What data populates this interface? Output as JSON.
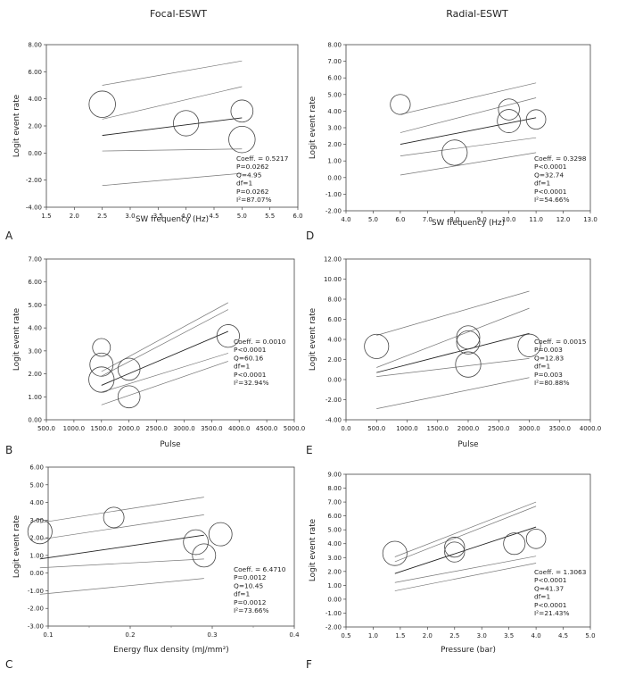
{
  "column_titles": [
    "Focal-ESWT",
    "Radial-ESWT"
  ],
  "chart_data": [
    {
      "type": "scatter",
      "panel_label": "A",
      "xlabel": "SW frequency (Hz)",
      "ylabel": "Logit event rate",
      "xlim": [
        1.5,
        6.0
      ],
      "xtick_step": 0.5,
      "xdecimals": 1,
      "ylim": [
        -4.0,
        8.0
      ],
      "ytick_step": 2.0,
      "ydecimals": 2,
      "points": [
        {
          "x": 2.5,
          "y": 3.6,
          "size": 1.3
        },
        {
          "x": 4.0,
          "y": 2.2,
          "size": 1.2
        },
        {
          "x": 5.0,
          "y": 3.1,
          "size": 0.9
        },
        {
          "x": 5.0,
          "y": 1.0,
          "size": 1.3
        }
      ],
      "lines": [
        {
          "x": [
            2.5,
            5.0
          ],
          "y": [
            1.3,
            2.6
          ]
        },
        {
          "x": [
            2.5,
            5.0
          ],
          "y": [
            5.0,
            6.8
          ]
        },
        {
          "x": [
            2.5,
            5.0
          ],
          "y": [
            2.5,
            4.9
          ]
        },
        {
          "x": [
            2.5,
            5.0
          ],
          "y": [
            0.15,
            0.3
          ]
        },
        {
          "x": [
            2.5,
            5.0
          ],
          "y": [
            -2.4,
            -1.5
          ]
        }
      ],
      "stats": [
        "Coeff. = 0.5217",
        "P=0.0262",
        "Q=4.95",
        "df=1",
        "P=0.0262",
        "I²=87.07%"
      ]
    },
    {
      "type": "scatter",
      "panel_label": "D",
      "xlabel": "SW frequency (Hz)",
      "ylabel": "Logit event rate",
      "xlim": [
        4.0,
        13.0
      ],
      "xtick_step": 1.0,
      "xdecimals": 1,
      "ylim": [
        -2.0,
        8.0
      ],
      "ytick_step": 1.0,
      "ydecimals": 2,
      "points": [
        {
          "x": 6.0,
          "y": 4.4,
          "size": 0.7
        },
        {
          "x": 8.0,
          "y": 1.5,
          "size": 1.2
        },
        {
          "x": 10.0,
          "y": 4.1,
          "size": 0.8
        },
        {
          "x": 10.0,
          "y": 3.4,
          "size": 1.0
        },
        {
          "x": 11.0,
          "y": 3.5,
          "size": 0.65
        }
      ],
      "lines": [
        {
          "x": [
            6.0,
            11.0
          ],
          "y": [
            2.0,
            3.6
          ]
        },
        {
          "x": [
            6.0,
            11.0
          ],
          "y": [
            3.8,
            5.7
          ]
        },
        {
          "x": [
            6.0,
            11.0
          ],
          "y": [
            2.7,
            4.8
          ]
        },
        {
          "x": [
            6.0,
            11.0
          ],
          "y": [
            1.3,
            2.4
          ]
        },
        {
          "x": [
            6.0,
            11.0
          ],
          "y": [
            0.15,
            1.5
          ]
        }
      ],
      "stats": [
        "Coeff. = 0.3298",
        "P<0.0001",
        "Q=32.74",
        "df=1",
        "P<0.0001",
        "I²=54.66%"
      ]
    },
    {
      "type": "scatter",
      "panel_label": "B",
      "xlabel": "Pulse",
      "ylabel": "Logit event rate",
      "xlim": [
        500,
        5000
      ],
      "xtick_step": 500,
      "xdecimals": 1,
      "ylim": [
        0,
        7
      ],
      "ytick_step": 1.0,
      "ydecimals": 2,
      "points": [
        {
          "x": 1500,
          "y": 3.15,
          "size": 0.5
        },
        {
          "x": 1500,
          "y": 2.4,
          "size": 1.0
        },
        {
          "x": 1500,
          "y": 1.75,
          "size": 1.2
        },
        {
          "x": 2000,
          "y": 2.2,
          "size": 0.9
        },
        {
          "x": 2000,
          "y": 1.0,
          "size": 0.9
        },
        {
          "x": 3800,
          "y": 3.65,
          "size": 0.95
        }
      ],
      "lines": [
        {
          "x": [
            1500,
            3800
          ],
          "y": [
            1.5,
            3.85
          ]
        },
        {
          "x": [
            1500,
            3800
          ],
          "y": [
            2.1,
            5.1
          ]
        },
        {
          "x": [
            1500,
            3800
          ],
          "y": [
            1.9,
            4.8
          ]
        },
        {
          "x": [
            1500,
            3800
          ],
          "y": [
            1.2,
            2.9
          ]
        },
        {
          "x": [
            1500,
            3800
          ],
          "y": [
            0.65,
            2.55
          ]
        }
      ],
      "stats": [
        "Coeff. = 0.0010",
        "P<0.0001",
        "Q=60.16",
        "df=1",
        "P<0.0001",
        "I²=32.94%"
      ]
    },
    {
      "type": "scatter",
      "panel_label": "E",
      "xlabel": "Pulse",
      "ylabel": "Logit event rate",
      "xlim": [
        0,
        4000
      ],
      "xtick_step": 500,
      "xdecimals": 1,
      "ylim": [
        -4,
        12
      ],
      "ytick_step": 2.0,
      "ydecimals": 2,
      "points": [
        {
          "x": 500,
          "y": 3.3,
          "size": 1.1
        },
        {
          "x": 2000,
          "y": 4.2,
          "size": 1.0
        },
        {
          "x": 2000,
          "y": 3.7,
          "size": 1.0
        },
        {
          "x": 2000,
          "y": 1.5,
          "size": 1.2
        },
        {
          "x": 3000,
          "y": 3.4,
          "size": 0.95
        }
      ],
      "lines": [
        {
          "x": [
            500,
            3000
          ],
          "y": [
            0.7,
            4.6
          ]
        },
        {
          "x": [
            500,
            3000
          ],
          "y": [
            4.4,
            8.8
          ]
        },
        {
          "x": [
            500,
            3000
          ],
          "y": [
            1.2,
            7.1
          ]
        },
        {
          "x": [
            500,
            3000
          ],
          "y": [
            0.3,
            2.1
          ]
        },
        {
          "x": [
            500,
            3000
          ],
          "y": [
            -2.9,
            0.2
          ]
        }
      ],
      "stats": [
        "Coeff. = 0.0015",
        "P=0.003",
        "Q=12.83",
        "df=1",
        "P=0.003",
        "I²=80.88%"
      ]
    },
    {
      "type": "scatter",
      "panel_label": "C",
      "xlabel": "Energy flux density (mJ/mm²)",
      "ylabel": "Logit event rate",
      "xlim": [
        0.1,
        0.4
      ],
      "xtick_step": 0.1,
      "xdecimals": 1,
      "xminor_step": 0.05,
      "ylim": [
        -3,
        6
      ],
      "ytick_step": 1.0,
      "ydecimals": 2,
      "points": [
        {
          "x": 0.09,
          "y": 2.35,
          "size": 1.1
        },
        {
          "x": 0.18,
          "y": 3.15,
          "size": 0.75
        },
        {
          "x": 0.31,
          "y": 2.2,
          "size": 1.0
        },
        {
          "x": 0.28,
          "y": 1.75,
          "size": 1.15
        },
        {
          "x": 0.29,
          "y": 1.0,
          "size": 1.0
        }
      ],
      "lines": [
        {
          "x": [
            0.09,
            0.29
          ],
          "y": [
            0.8,
            2.15
          ]
        },
        {
          "x": [
            0.09,
            0.29
          ],
          "y": [
            2.85,
            4.3
          ]
        },
        {
          "x": [
            0.09,
            0.29
          ],
          "y": [
            1.9,
            3.3
          ]
        },
        {
          "x": [
            0.09,
            0.29
          ],
          "y": [
            0.3,
            0.8
          ]
        },
        {
          "x": [
            0.09,
            0.29
          ],
          "y": [
            -1.2,
            -0.3
          ]
        }
      ],
      "stats": [
        "Coeff. = 6.4710",
        "P=0.0012",
        "Q=10.45",
        "df=1",
        "P=0.0012",
        "I²=73.66%"
      ]
    },
    {
      "type": "scatter",
      "panel_label": "F",
      "xlabel": "Pressure (bar)",
      "ylabel": "Logit event rate",
      "xlim": [
        0.5,
        5.0
      ],
      "xtick_step": 0.5,
      "xdecimals": 1,
      "ylim": [
        -2,
        9
      ],
      "ytick_step": 1.0,
      "ydecimals": 2,
      "points": [
        {
          "x": 1.4,
          "y": 3.3,
          "size": 1.1
        },
        {
          "x": 2.5,
          "y": 3.75,
          "size": 0.7
        },
        {
          "x": 2.5,
          "y": 3.4,
          "size": 0.7
        },
        {
          "x": 3.6,
          "y": 4.0,
          "size": 0.85
        },
        {
          "x": 4.0,
          "y": 4.35,
          "size": 0.65
        }
      ],
      "lines": [
        {
          "x": [
            1.4,
            4.0
          ],
          "y": [
            1.85,
            5.2
          ]
        },
        {
          "x": [
            1.4,
            4.0
          ],
          "y": [
            3.05,
            7.0
          ]
        },
        {
          "x": [
            1.4,
            4.0
          ],
          "y": [
            2.7,
            6.7
          ]
        },
        {
          "x": [
            1.4,
            4.0
          ],
          "y": [
            1.2,
            3.1
          ]
        },
        {
          "x": [
            1.4,
            4.0
          ],
          "y": [
            0.6,
            2.6
          ]
        }
      ],
      "stats": [
        "Coeff. = 1.3063",
        "P<0.0001",
        "Q=41.37",
        "df=1",
        "P<0.0001",
        "I²=21.43%"
      ]
    }
  ]
}
